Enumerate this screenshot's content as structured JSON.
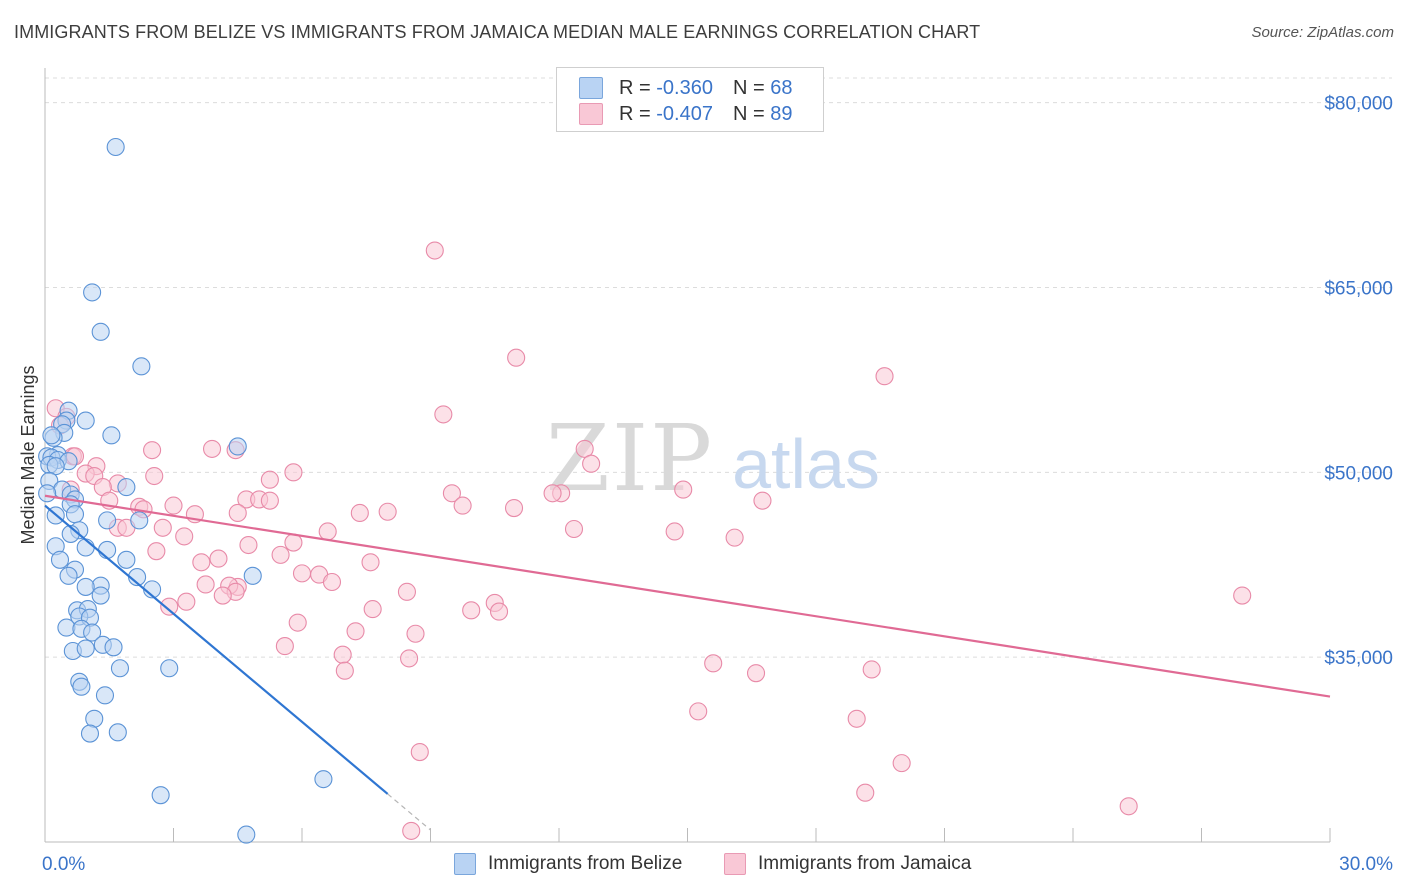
{
  "title": "IMMIGRANTS FROM BELIZE VS IMMIGRANTS FROM JAMAICA MEDIAN MALE EARNINGS CORRELATION CHART",
  "source": "Source: ZipAtlas.com",
  "watermark": {
    "zip": "ZIP",
    "atlas": "atlas"
  },
  "colors": {
    "belize_fill": "#b9d3f3",
    "belize_stroke": "#5b93d6",
    "belize_line": "#2f76d2",
    "jamaica_fill": "#f9c8d6",
    "jamaica_stroke": "#e88aa8",
    "jamaica_line": "#e06a94",
    "axis_label": "#3a74c9",
    "grid": "#dcdcdc"
  },
  "legend": {
    "belize": {
      "r_label": "R =",
      "r_value": "-0.360",
      "n_label": "N =",
      "n_value": "68"
    },
    "jamaica": {
      "r_label": "R =",
      "r_value": "-0.407",
      "n_label": "N =",
      "n_value": "89"
    }
  },
  "chart_data": {
    "type": "scatter",
    "title": "IMMIGRANTS FROM BELIZE VS IMMIGRANTS FROM JAMAICA MEDIAN MALE EARNINGS CORRELATION CHART",
    "xlabel": "",
    "ylabel": "Median Male Earnings",
    "xlim": [
      0,
      30
    ],
    "ylim": [
      20000,
      82000
    ],
    "x_tick_labels": [
      "0.0%",
      "30.0%"
    ],
    "y_ticks": [
      35000,
      50000,
      65000,
      80000
    ],
    "y_tick_labels": [
      "$35,000",
      "$50,000",
      "$65,000",
      "$80,000"
    ],
    "series": [
      {
        "name": "Immigrants from Belize",
        "r": -0.36,
        "n": 68,
        "trend": {
          "x0": 0,
          "y0": 47300,
          "x1": 8.0,
          "y1": 23900,
          "dash_x1": 9.0
        },
        "points": [
          [
            1.65,
            76400
          ],
          [
            1.1,
            64600
          ],
          [
            1.3,
            61400
          ],
          [
            2.25,
            58600
          ],
          [
            0.55,
            55000
          ],
          [
            0.5,
            54200
          ],
          [
            0.95,
            54200
          ],
          [
            0.4,
            53900
          ],
          [
            0.45,
            53200
          ],
          [
            1.55,
            53000
          ],
          [
            0.2,
            52800
          ],
          [
            0.3,
            51400
          ],
          [
            0.05,
            51300
          ],
          [
            0.15,
            51200
          ],
          [
            0.3,
            51000
          ],
          [
            0.55,
            50900
          ],
          [
            0.1,
            50600
          ],
          [
            0.25,
            50500
          ],
          [
            4.5,
            52100
          ],
          [
            0.1,
            49300
          ],
          [
            0.4,
            48600
          ],
          [
            0.6,
            48200
          ],
          [
            0.05,
            48300
          ],
          [
            1.9,
            48800
          ],
          [
            0.7,
            47800
          ],
          [
            0.6,
            47400
          ],
          [
            0.25,
            46500
          ],
          [
            0.7,
            46600
          ],
          [
            1.45,
            46100
          ],
          [
            2.2,
            46100
          ],
          [
            0.8,
            45300
          ],
          [
            0.6,
            45000
          ],
          [
            0.25,
            44000
          ],
          [
            0.95,
            43900
          ],
          [
            1.45,
            43700
          ],
          [
            0.35,
            42900
          ],
          [
            1.9,
            42900
          ],
          [
            0.7,
            42100
          ],
          [
            0.55,
            41600
          ],
          [
            2.15,
            41500
          ],
          [
            4.85,
            41600
          ],
          [
            1.3,
            40800
          ],
          [
            0.95,
            40700
          ],
          [
            2.5,
            40500
          ],
          [
            1.3,
            40000
          ],
          [
            0.75,
            38800
          ],
          [
            1.0,
            38900
          ],
          [
            0.8,
            38300
          ],
          [
            1.05,
            38200
          ],
          [
            0.5,
            37400
          ],
          [
            0.85,
            37300
          ],
          [
            1.1,
            37000
          ],
          [
            1.35,
            36000
          ],
          [
            1.6,
            35800
          ],
          [
            0.65,
            35500
          ],
          [
            0.95,
            35700
          ],
          [
            1.75,
            34100
          ],
          [
            2.9,
            34100
          ],
          [
            0.8,
            33000
          ],
          [
            0.85,
            32600
          ],
          [
            1.4,
            31900
          ],
          [
            1.15,
            30000
          ],
          [
            1.05,
            28800
          ],
          [
            1.7,
            28900
          ],
          [
            6.5,
            25100
          ],
          [
            2.7,
            23800
          ],
          [
            4.7,
            20600
          ],
          [
            0.15,
            53000
          ]
        ]
      },
      {
        "name": "Immigrants from Jamaica",
        "r": -0.407,
        "n": 89,
        "trend": {
          "x0": 0,
          "y0": 48100,
          "x1": 30,
          "y1": 31800
        },
        "points": [
          [
            9.1,
            68000
          ],
          [
            11.0,
            59300
          ],
          [
            19.6,
            57800
          ],
          [
            0.25,
            55200
          ],
          [
            9.3,
            54700
          ],
          [
            0.5,
            54500
          ],
          [
            0.65,
            51300
          ],
          [
            0.7,
            51300
          ],
          [
            2.5,
            51800
          ],
          [
            3.9,
            51900
          ],
          [
            4.45,
            51800
          ],
          [
            12.6,
            51900
          ],
          [
            1.2,
            50500
          ],
          [
            12.75,
            50700
          ],
          [
            5.8,
            50000
          ],
          [
            0.95,
            49900
          ],
          [
            1.15,
            49700
          ],
          [
            2.55,
            49700
          ],
          [
            5.25,
            49400
          ],
          [
            1.7,
            49100
          ],
          [
            0.6,
            48600
          ],
          [
            1.35,
            48800
          ],
          [
            9.5,
            48300
          ],
          [
            12.05,
            48300
          ],
          [
            11.85,
            48300
          ],
          [
            14.9,
            48600
          ],
          [
            4.7,
            47800
          ],
          [
            5.0,
            47800
          ],
          [
            5.25,
            47700
          ],
          [
            1.5,
            47700
          ],
          [
            16.75,
            47700
          ],
          [
            2.2,
            47200
          ],
          [
            2.3,
            47000
          ],
          [
            3.0,
            47300
          ],
          [
            7.35,
            46700
          ],
          [
            8.0,
            46800
          ],
          [
            9.75,
            47300
          ],
          [
            10.95,
            47100
          ],
          [
            4.5,
            46700
          ],
          [
            3.5,
            46600
          ],
          [
            2.75,
            45500
          ],
          [
            1.7,
            45500
          ],
          [
            1.9,
            45500
          ],
          [
            6.6,
            45200
          ],
          [
            12.35,
            45400
          ],
          [
            14.7,
            45200
          ],
          [
            16.1,
            44700
          ],
          [
            3.25,
            44800
          ],
          [
            2.6,
            43600
          ],
          [
            4.75,
            44100
          ],
          [
            5.8,
            44300
          ],
          [
            4.05,
            43000
          ],
          [
            5.5,
            43300
          ],
          [
            7.6,
            42700
          ],
          [
            3.65,
            42700
          ],
          [
            6.0,
            41800
          ],
          [
            6.4,
            41700
          ],
          [
            6.7,
            41100
          ],
          [
            4.5,
            40700
          ],
          [
            4.3,
            40800
          ],
          [
            4.45,
            40300
          ],
          [
            4.15,
            40000
          ],
          [
            3.75,
            40900
          ],
          [
            8.45,
            40300
          ],
          [
            2.9,
            39100
          ],
          [
            3.3,
            39500
          ],
          [
            10.5,
            39400
          ],
          [
            9.95,
            38800
          ],
          [
            10.6,
            38700
          ],
          [
            7.65,
            38900
          ],
          [
            5.9,
            37800
          ],
          [
            7.25,
            37100
          ],
          [
            8.65,
            36900
          ],
          [
            5.6,
            35900
          ],
          [
            6.95,
            35200
          ],
          [
            8.5,
            34900
          ],
          [
            7.0,
            33900
          ],
          [
            15.6,
            34500
          ],
          [
            16.6,
            33700
          ],
          [
            19.3,
            34000
          ],
          [
            15.25,
            30600
          ],
          [
            18.95,
            30000
          ],
          [
            8.75,
            27300
          ],
          [
            20.0,
            26400
          ],
          [
            19.15,
            24000
          ],
          [
            25.3,
            22900
          ],
          [
            8.55,
            20900
          ],
          [
            0.35,
            53800
          ],
          [
            27.95,
            40000
          ]
        ]
      }
    ]
  }
}
